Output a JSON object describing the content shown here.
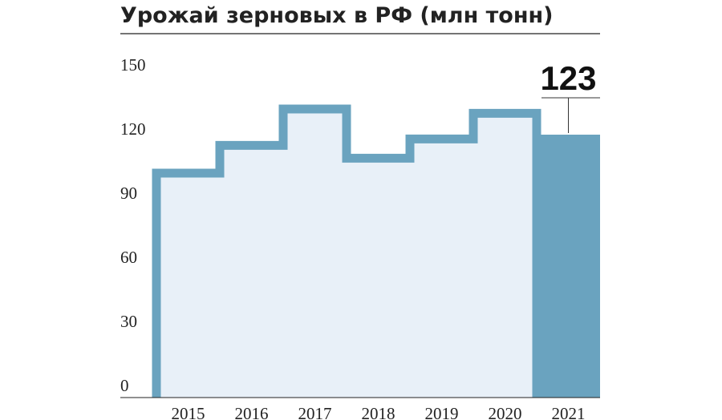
{
  "chart_data": {
    "type": "step",
    "title": "Урожай зерновых в РФ (млн тонн)",
    "categories": [
      "2015",
      "2016",
      "2017",
      "2018",
      "2019",
      "2020",
      "2021"
    ],
    "values": [
      105,
      118,
      135,
      112,
      121,
      133,
      123
    ],
    "color": "#6aa3bf",
    "fill_color": "#e8f0f8",
    "highlight_index": 6,
    "ylim": [
      0,
      150
    ],
    "yticks": [
      0,
      30,
      60,
      90,
      120,
      150
    ]
  }
}
